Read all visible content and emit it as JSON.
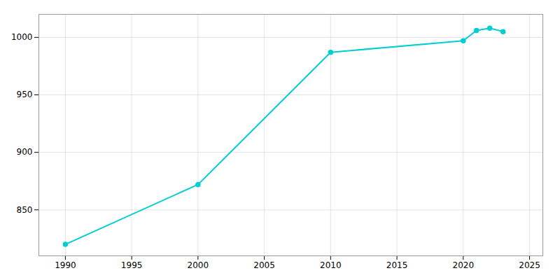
{
  "chart_data": {
    "type": "line",
    "x": [
      1990,
      2000,
      2010,
      2020,
      2021,
      2022,
      2023
    ],
    "values": [
      820,
      872,
      987,
      997,
      1006,
      1008,
      1005
    ],
    "color": "#00CED1",
    "marker": "circle",
    "xlim": [
      1988,
      2026
    ],
    "ylim": [
      810,
      1020
    ],
    "xticks": [
      1990,
      1995,
      2000,
      2005,
      2010,
      2015,
      2020,
      2025
    ],
    "yticks": [
      850,
      900,
      950,
      1000
    ],
    "grid": true
  }
}
